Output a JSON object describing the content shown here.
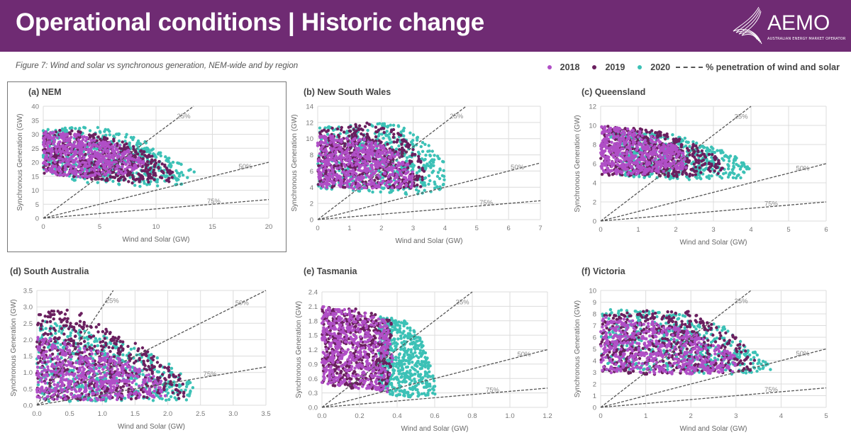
{
  "header": {
    "title": "Operational conditions | Historic change",
    "logo_text": "AEMO",
    "logo_subtext": "AUSTRALIAN ENERGY MARKET OPERATOR",
    "background": "#6f2b73"
  },
  "caption": "Figure 7: Wind and solar vs synchronous generation, NEM-wide and by region",
  "legend": {
    "items": [
      {
        "label": "2018",
        "color": "#b04fc6"
      },
      {
        "label": "2019",
        "color": "#6a1f5f"
      },
      {
        "label": "2020",
        "color": "#3cc1b6"
      }
    ],
    "line_label": "% penetration of wind and solar"
  },
  "chart_data": [
    {
      "type": "scatter",
      "title": "(a) NEM",
      "xlabel": "Wind and Solar (GW)",
      "ylabel": "Synchronous Generation (GW)",
      "xlim": [
        0,
        20
      ],
      "ylim": [
        0,
        40
      ],
      "xticks": [
        "0",
        "5",
        "10",
        "15",
        "20"
      ],
      "yticks": [
        "0",
        "5",
        "10",
        "15",
        "20",
        "25",
        "30",
        "35",
        "40"
      ],
      "grid": true,
      "penetration_lines": [
        {
          "label": "25%",
          "value": 0.25
        },
        {
          "label": "50%",
          "value": 0.5
        },
        {
          "label": "75%",
          "value": 0.75
        }
      ],
      "series": [
        {
          "name": "2020",
          "cloud_envelope": [
            [
              0,
              32
            ],
            [
              1,
              33
            ],
            [
              5,
              32.5
            ],
            [
              8.5,
              29
            ],
            [
              11,
              22
            ],
            [
              13.5,
              17
            ],
            [
              12.5,
              12
            ],
            [
              10,
              11
            ],
            [
              6,
              12
            ],
            [
              3,
              13
            ],
            [
              0,
              17
            ]
          ]
        },
        {
          "name": "2019",
          "cloud_envelope": [
            [
              0,
              31
            ],
            [
              2,
              32
            ],
            [
              6,
              29
            ],
            [
              9,
              24
            ],
            [
              11.5,
              17
            ],
            [
              11.5,
              13
            ],
            [
              8,
              12.5
            ],
            [
              4,
              14
            ],
            [
              0,
              16
            ]
          ]
        },
        {
          "name": "2018",
          "cloud_envelope": [
            [
              0,
              31
            ],
            [
              3,
              30
            ],
            [
              7,
              26
            ],
            [
              9,
              20
            ],
            [
              8,
              16
            ],
            [
              4,
              14.5
            ],
            [
              1,
              15.5
            ],
            [
              0,
              17
            ]
          ]
        }
      ]
    },
    {
      "type": "scatter",
      "title": "(b) New South Wales",
      "xlabel": "Wind and Solar (GW)",
      "ylabel": "Synchronous Generation (GW)",
      "xlim": [
        0,
        7
      ],
      "ylim": [
        0,
        14
      ],
      "xticks": [
        "0",
        "1",
        "2",
        "3",
        "4",
        "5",
        "6",
        "7"
      ],
      "yticks": [
        "0",
        "2",
        "4",
        "6",
        "8",
        "10",
        "12",
        "14"
      ],
      "grid": true,
      "penetration_lines": [
        {
          "label": "25%",
          "value": 0.25
        },
        {
          "label": "50%",
          "value": 0.5
        },
        {
          "label": "75%",
          "value": 0.75
        }
      ],
      "series": [
        {
          "name": "2020",
          "cloud_envelope": [
            [
              0,
              11.5
            ],
            [
              2.5,
              12
            ],
            [
              3.3,
              10
            ],
            [
              4,
              7
            ],
            [
              4,
              3.5
            ],
            [
              3,
              3
            ],
            [
              0,
              3.8
            ]
          ]
        },
        {
          "name": "2019",
          "cloud_envelope": [
            [
              0,
              11
            ],
            [
              1.5,
              12
            ],
            [
              2.5,
              11
            ],
            [
              3.2,
              8
            ],
            [
              3.5,
              4
            ],
            [
              2.5,
              3.8
            ],
            [
              0,
              4
            ]
          ]
        },
        {
          "name": "2018",
          "cloud_envelope": [
            [
              0,
              10.5
            ],
            [
              1.5,
              10
            ],
            [
              2.5,
              8.5
            ],
            [
              3,
              6
            ],
            [
              3,
              4
            ],
            [
              1,
              3.8
            ],
            [
              0,
              4
            ]
          ]
        }
      ]
    },
    {
      "type": "scatter",
      "title": "(c) Queensland",
      "xlabel": "Wind and Solar (GW)",
      "ylabel": "Synchronous Generation (GW)",
      "xlim": [
        0,
        6
      ],
      "ylim": [
        0,
        12
      ],
      "xticks": [
        "0",
        "1",
        "2",
        "3",
        "4",
        "5",
        "6"
      ],
      "yticks": [
        "0",
        "2",
        "4",
        "6",
        "8",
        "10",
        "12"
      ],
      "grid": true,
      "penetration_lines": [
        {
          "label": "25%",
          "value": 0.25
        },
        {
          "label": "50%",
          "value": 0.5
        },
        {
          "label": "75%",
          "value": 0.75
        }
      ],
      "series": [
        {
          "name": "2020",
          "cloud_envelope": [
            [
              0.2,
              9.5
            ],
            [
              2,
              9
            ],
            [
              3.5,
              7
            ],
            [
              4,
              5.5
            ],
            [
              3.8,
              4.5
            ],
            [
              2.5,
              4.3
            ],
            [
              0.5,
              4.6
            ]
          ]
        },
        {
          "name": "2019",
          "cloud_envelope": [
            [
              0,
              10
            ],
            [
              1.5,
              9.5
            ],
            [
              2.5,
              8
            ],
            [
              3.2,
              6.5
            ],
            [
              3.3,
              5
            ],
            [
              2.5,
              4.6
            ],
            [
              0,
              4.8
            ]
          ]
        },
        {
          "name": "2018",
          "cloud_envelope": [
            [
              0,
              10
            ],
            [
              1,
              9.5
            ],
            [
              2.2,
              7.5
            ],
            [
              2.3,
              5.5
            ],
            [
              1,
              4.8
            ],
            [
              0,
              5
            ]
          ]
        }
      ]
    },
    {
      "type": "scatter",
      "title": "(d) South Australia",
      "xlabel": "Wind and Solar (GW)",
      "ylabel": "Synchronous Generation (GW)",
      "xlim": [
        0,
        3.5
      ],
      "ylim": [
        0,
        3.5
      ],
      "xticks": [
        "0.0",
        "0.5",
        "1.0",
        "1.5",
        "2.0",
        "2.5",
        "3.0",
        "3.5"
      ],
      "yticks": [
        "0.0",
        "0.5",
        "1.0",
        "1.5",
        "2.0",
        "2.5",
        "3.0",
        "3.5"
      ],
      "grid": true,
      "penetration_lines": [
        {
          "label": "25%",
          "value": 0.25
        },
        {
          "label": "50%",
          "value": 0.5
        },
        {
          "label": "75%",
          "value": 0.75
        }
      ],
      "series": [
        {
          "name": "2020",
          "cloud_envelope": [
            [
              0,
              2.6
            ],
            [
              0.6,
              2.4
            ],
            [
              1.2,
              2
            ],
            [
              1.9,
              1.5
            ],
            [
              2.4,
              0.6
            ],
            [
              2.3,
              0.15
            ],
            [
              0,
              0.1
            ]
          ]
        },
        {
          "name": "2019",
          "cloud_envelope": [
            [
              0,
              2.9
            ],
            [
              0.6,
              2.9
            ],
            [
              1,
              2.5
            ],
            [
              1.6,
              1.8
            ],
            [
              2.2,
              0.9
            ],
            [
              2.3,
              0.2
            ],
            [
              0,
              0.15
            ]
          ]
        },
        {
          "name": "2018",
          "cloud_envelope": [
            [
              0,
              2.1
            ],
            [
              0.5,
              1.9
            ],
            [
              1.2,
              1.5
            ],
            [
              1.9,
              0.8
            ],
            [
              2,
              0.25
            ],
            [
              1,
              0.15
            ],
            [
              0,
              0.2
            ]
          ]
        }
      ]
    },
    {
      "type": "scatter",
      "title": "(e) Tasmania",
      "xlabel": "Wind and Solar (GW)",
      "ylabel": "Synchronous Generation (GW)",
      "xlim": [
        0,
        1.2
      ],
      "ylim": [
        0,
        2.4
      ],
      "xticks": [
        "0.0",
        "0.2",
        "0.4",
        "0.6",
        "0.8",
        "1.0",
        "1.2"
      ],
      "yticks": [
        "0.0",
        "0.3",
        "0.6",
        "0.9",
        "1.2",
        "1.5",
        "1.8",
        "2.1",
        "2.4"
      ],
      "grid": true,
      "penetration_lines": [
        {
          "label": "25%",
          "value": 0.25
        },
        {
          "label": "50%",
          "value": 0.5
        },
        {
          "label": "75%",
          "value": 0.75
        }
      ],
      "series": [
        {
          "name": "2020",
          "cloud_envelope": [
            [
              0.3,
              1.9
            ],
            [
              0.45,
              1.8
            ],
            [
              0.55,
              1.3
            ],
            [
              0.6,
              0.5
            ],
            [
              0.62,
              0.25
            ],
            [
              0.4,
              0.2
            ],
            [
              0.3,
              0.4
            ]
          ]
        },
        {
          "name": "2019",
          "cloud_envelope": [
            [
              0,
              2.1
            ],
            [
              0.2,
              2.05
            ],
            [
              0.37,
              1.8
            ],
            [
              0.37,
              0.3
            ],
            [
              0.1,
              0.42
            ],
            [
              0,
              0.5
            ]
          ]
        },
        {
          "name": "2018",
          "cloud_envelope": [
            [
              0,
              2.1
            ],
            [
              0.2,
              2.0
            ],
            [
              0.35,
              1.8
            ],
            [
              0.38,
              1.0
            ],
            [
              0.35,
              0.3
            ],
            [
              0.1,
              0.45
            ],
            [
              0,
              0.5
            ]
          ]
        }
      ]
    },
    {
      "type": "scatter",
      "title": "(f) Victoria",
      "xlabel": "Wind and Solar (GW)",
      "ylabel": "Synchronous Generation (GW)",
      "xlim": [
        0,
        5
      ],
      "ylim": [
        0,
        10
      ],
      "xticks": [
        "0",
        "1",
        "2",
        "3",
        "4",
        "5"
      ],
      "yticks": [
        "0",
        "1",
        "2",
        "3",
        "4",
        "5",
        "6",
        "7",
        "8",
        "9",
        "10"
      ],
      "grid": true,
      "penetration_lines": [
        {
          "label": "25%",
          "value": 0.25
        },
        {
          "label": "50%",
          "value": 0.5
        },
        {
          "label": "75%",
          "value": 0.75
        }
      ],
      "series": [
        {
          "name": "2020",
          "cloud_envelope": [
            [
              0,
              8.4
            ],
            [
              1.5,
              8.2
            ],
            [
              2.7,
              7
            ],
            [
              3.5,
              4.5
            ],
            [
              3.9,
              3.3
            ],
            [
              3,
              2.8
            ],
            [
              0,
              3.2
            ]
          ]
        },
        {
          "name": "2019",
          "cloud_envelope": [
            [
              0,
              7.8
            ],
            [
              0.5,
              8.3
            ],
            [
              2,
              8.2
            ],
            [
              3,
              6
            ],
            [
              3.5,
              4
            ],
            [
              3.3,
              3
            ],
            [
              1,
              2.8
            ],
            [
              0,
              3
            ]
          ]
        },
        {
          "name": "2018",
          "cloud_envelope": [
            [
              0,
              7.8
            ],
            [
              1,
              7.5
            ],
            [
              2,
              6.5
            ],
            [
              3,
              4.5
            ],
            [
              3,
              3
            ],
            [
              1.5,
              2.8
            ],
            [
              0,
              3
            ]
          ]
        }
      ]
    }
  ]
}
